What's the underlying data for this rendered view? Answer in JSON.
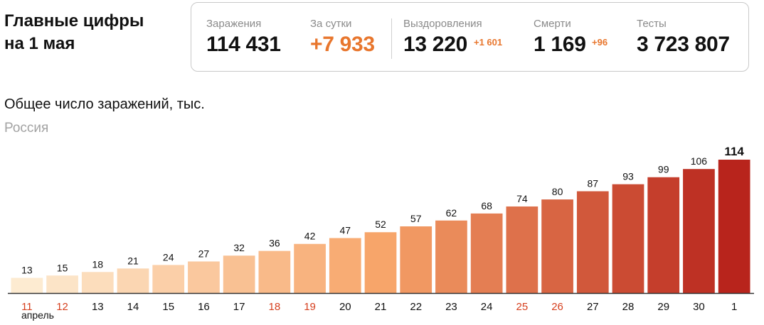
{
  "headline": {
    "line1": "Главные цифры",
    "line2": "на 1 мая"
  },
  "stats": {
    "cases": {
      "label": "Заражения",
      "value": "114 431"
    },
    "daily": {
      "label": "За сутки",
      "value": "+7 933",
      "color": "#e8762d"
    },
    "recovered": {
      "label": "Выздоровления",
      "value": "13 220",
      "delta": "+1 601",
      "delta_color": "#e8762d"
    },
    "deaths": {
      "label": "Смерти",
      "value": "1 169",
      "delta": "+96",
      "delta_color": "#e8762d"
    },
    "tests": {
      "label": "Тесты",
      "value": "3 723 807"
    }
  },
  "chart_data": {
    "type": "bar",
    "title": "Общее число заражений, тыс.",
    "subtitle": "Россия",
    "month_label": "апрель",
    "categories": [
      "11",
      "12",
      "13",
      "14",
      "15",
      "16",
      "17",
      "18",
      "19",
      "20",
      "21",
      "22",
      "23",
      "24",
      "25",
      "26",
      "27",
      "28",
      "29",
      "30",
      "1"
    ],
    "values": [
      13,
      15,
      18,
      21,
      24,
      27,
      32,
      36,
      42,
      47,
      52,
      57,
      62,
      68,
      74,
      80,
      87,
      93,
      99,
      106,
      114
    ],
    "weekend_categories": [
      "11",
      "12",
      "18",
      "19",
      "25",
      "26"
    ],
    "highlight_last": true,
    "ylim": [
      0,
      114
    ],
    "colors": {
      "weekday_label": "#111111",
      "weekend_label": "#d6401f",
      "bar_low": "#fdebd1",
      "bar_mid": "#f7a56a",
      "bar_high": "#b8241c",
      "axis": "#333333"
    }
  }
}
